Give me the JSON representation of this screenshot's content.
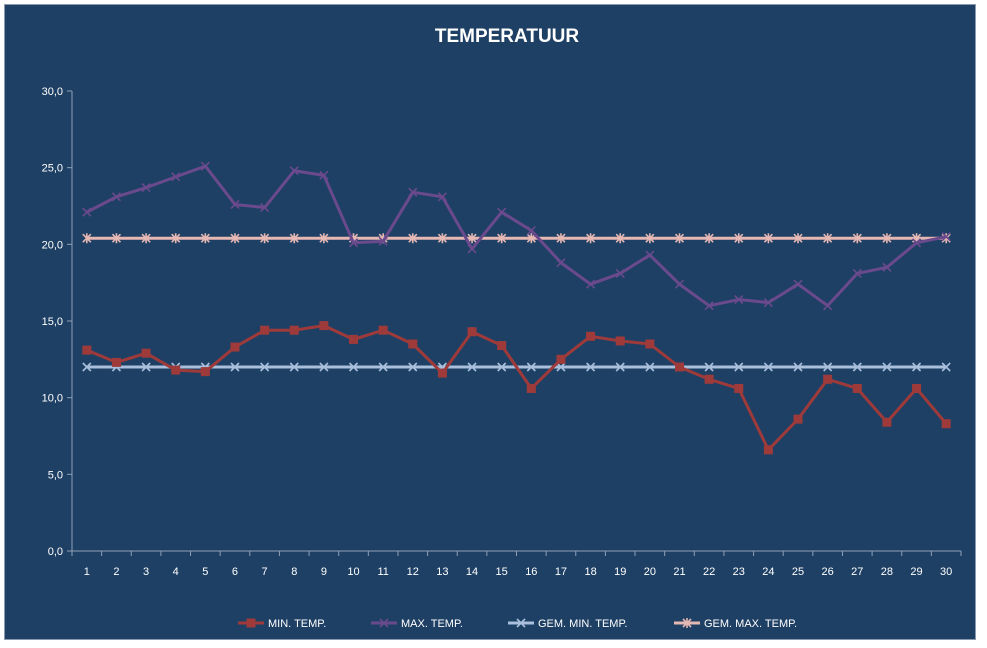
{
  "chart_data": {
    "type": "line",
    "title": "TEMPERATUUR",
    "xlabel": "",
    "ylabel": "",
    "ylim": [
      0,
      30
    ],
    "yticks": [
      "0,0",
      "5,0",
      "10,0",
      "15,0",
      "20,0",
      "25,0",
      "30,0"
    ],
    "x": [
      1,
      2,
      3,
      4,
      5,
      6,
      7,
      8,
      9,
      10,
      11,
      12,
      13,
      14,
      15,
      16,
      17,
      18,
      19,
      20,
      21,
      22,
      23,
      24,
      25,
      26,
      27,
      28,
      29,
      30
    ],
    "grid": false,
    "legend_position": "bottom",
    "series": [
      {
        "name": "MIN. TEMP.",
        "color": "#9e3a3a",
        "marker": "square",
        "values": [
          13.1,
          12.3,
          12.9,
          11.8,
          11.7,
          13.3,
          14.4,
          14.4,
          14.7,
          13.8,
          14.4,
          13.5,
          11.6,
          14.3,
          13.4,
          10.6,
          12.5,
          14.0,
          13.7,
          13.5,
          12.0,
          11.2,
          10.6,
          6.6,
          8.6,
          11.2,
          10.6,
          8.4,
          10.6,
          8.3
        ]
      },
      {
        "name": "MAX. TEMP.",
        "color": "#6a4a8c",
        "marker": "x",
        "values": [
          22.1,
          23.1,
          23.7,
          24.4,
          25.1,
          22.6,
          22.4,
          24.8,
          24.5,
          20.1,
          20.2,
          23.4,
          23.1,
          19.7,
          22.1,
          20.9,
          18.8,
          17.4,
          18.1,
          19.3,
          17.4,
          16.0,
          16.4,
          16.2,
          17.4,
          16.0,
          18.1,
          18.5,
          20.1,
          20.5
        ]
      },
      {
        "name": "GEM. MIN. TEMP.",
        "color": "#a9bfdc",
        "marker": "x",
        "values": [
          12.0,
          12.0,
          12.0,
          12.0,
          12.0,
          12.0,
          12.0,
          12.0,
          12.0,
          12.0,
          12.0,
          12.0,
          12.0,
          12.0,
          12.0,
          12.0,
          12.0,
          12.0,
          12.0,
          12.0,
          12.0,
          12.0,
          12.0,
          12.0,
          12.0,
          12.0,
          12.0,
          12.0,
          12.0,
          12.0
        ]
      },
      {
        "name": "GEM. MAX. TEMP.",
        "color": "#e5b8b4",
        "marker": "star",
        "values": [
          20.4,
          20.4,
          20.4,
          20.4,
          20.4,
          20.4,
          20.4,
          20.4,
          20.4,
          20.4,
          20.4,
          20.4,
          20.4,
          20.4,
          20.4,
          20.4,
          20.4,
          20.4,
          20.4,
          20.4,
          20.4,
          20.4,
          20.4,
          20.4,
          20.4,
          20.4,
          20.4,
          20.4,
          20.4,
          20.4
        ]
      }
    ]
  }
}
